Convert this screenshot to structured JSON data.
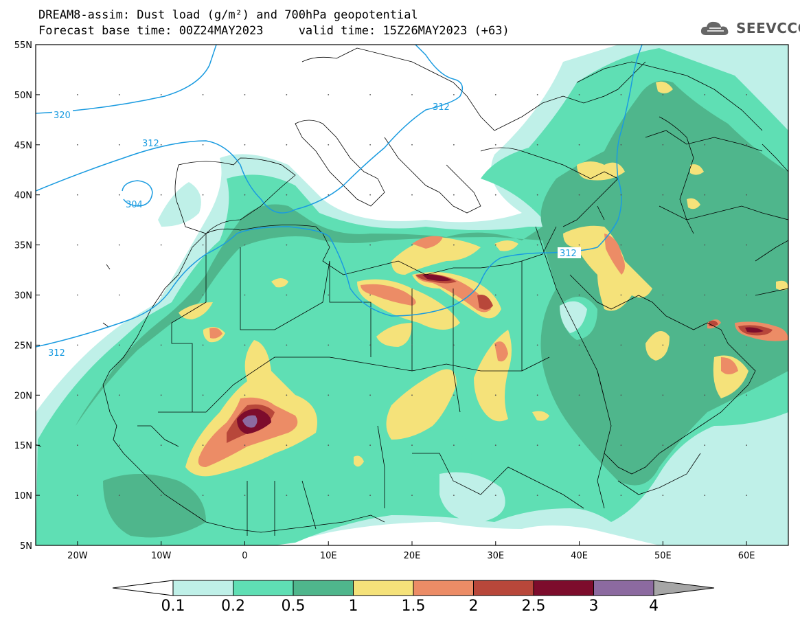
{
  "header": {
    "title_line1": "DREAM8-assim: Dust load (g/m²) and 700hPa geopotential",
    "title_line2": "Forecast base time: 00Z24MAY2023     valid time: 15Z26MAY2023 (+63)",
    "logo_text": "SEEVCCC"
  },
  "axes": {
    "lat_labels": [
      "55N",
      "50N",
      "45N",
      "40N",
      "35N",
      "30N",
      "25N",
      "20N",
      "15N",
      "10N",
      "5N"
    ],
    "lon_labels": [
      "20W",
      "10W",
      "0",
      "10E",
      "20E",
      "30E",
      "40E",
      "50E",
      "60E"
    ]
  },
  "geopotential": {
    "labels": [
      "320",
      "312",
      "312",
      "304",
      "312",
      "312"
    ]
  },
  "colorbar": {
    "labels": [
      "0.1",
      "0.2",
      "0.5",
      "1",
      "1.5",
      "2",
      "2.5",
      "3",
      "4"
    ],
    "colors": [
      "#bff0e8",
      "#5fdfb4",
      "#4fb68c",
      "#f5e27a",
      "#ec8c66",
      "#b8473a",
      "#7d0c2c",
      "#8c6aa0",
      "#a6a6a6"
    ]
  },
  "colors": {
    "contour": "#1a9be0",
    "coast": "#000000"
  }
}
